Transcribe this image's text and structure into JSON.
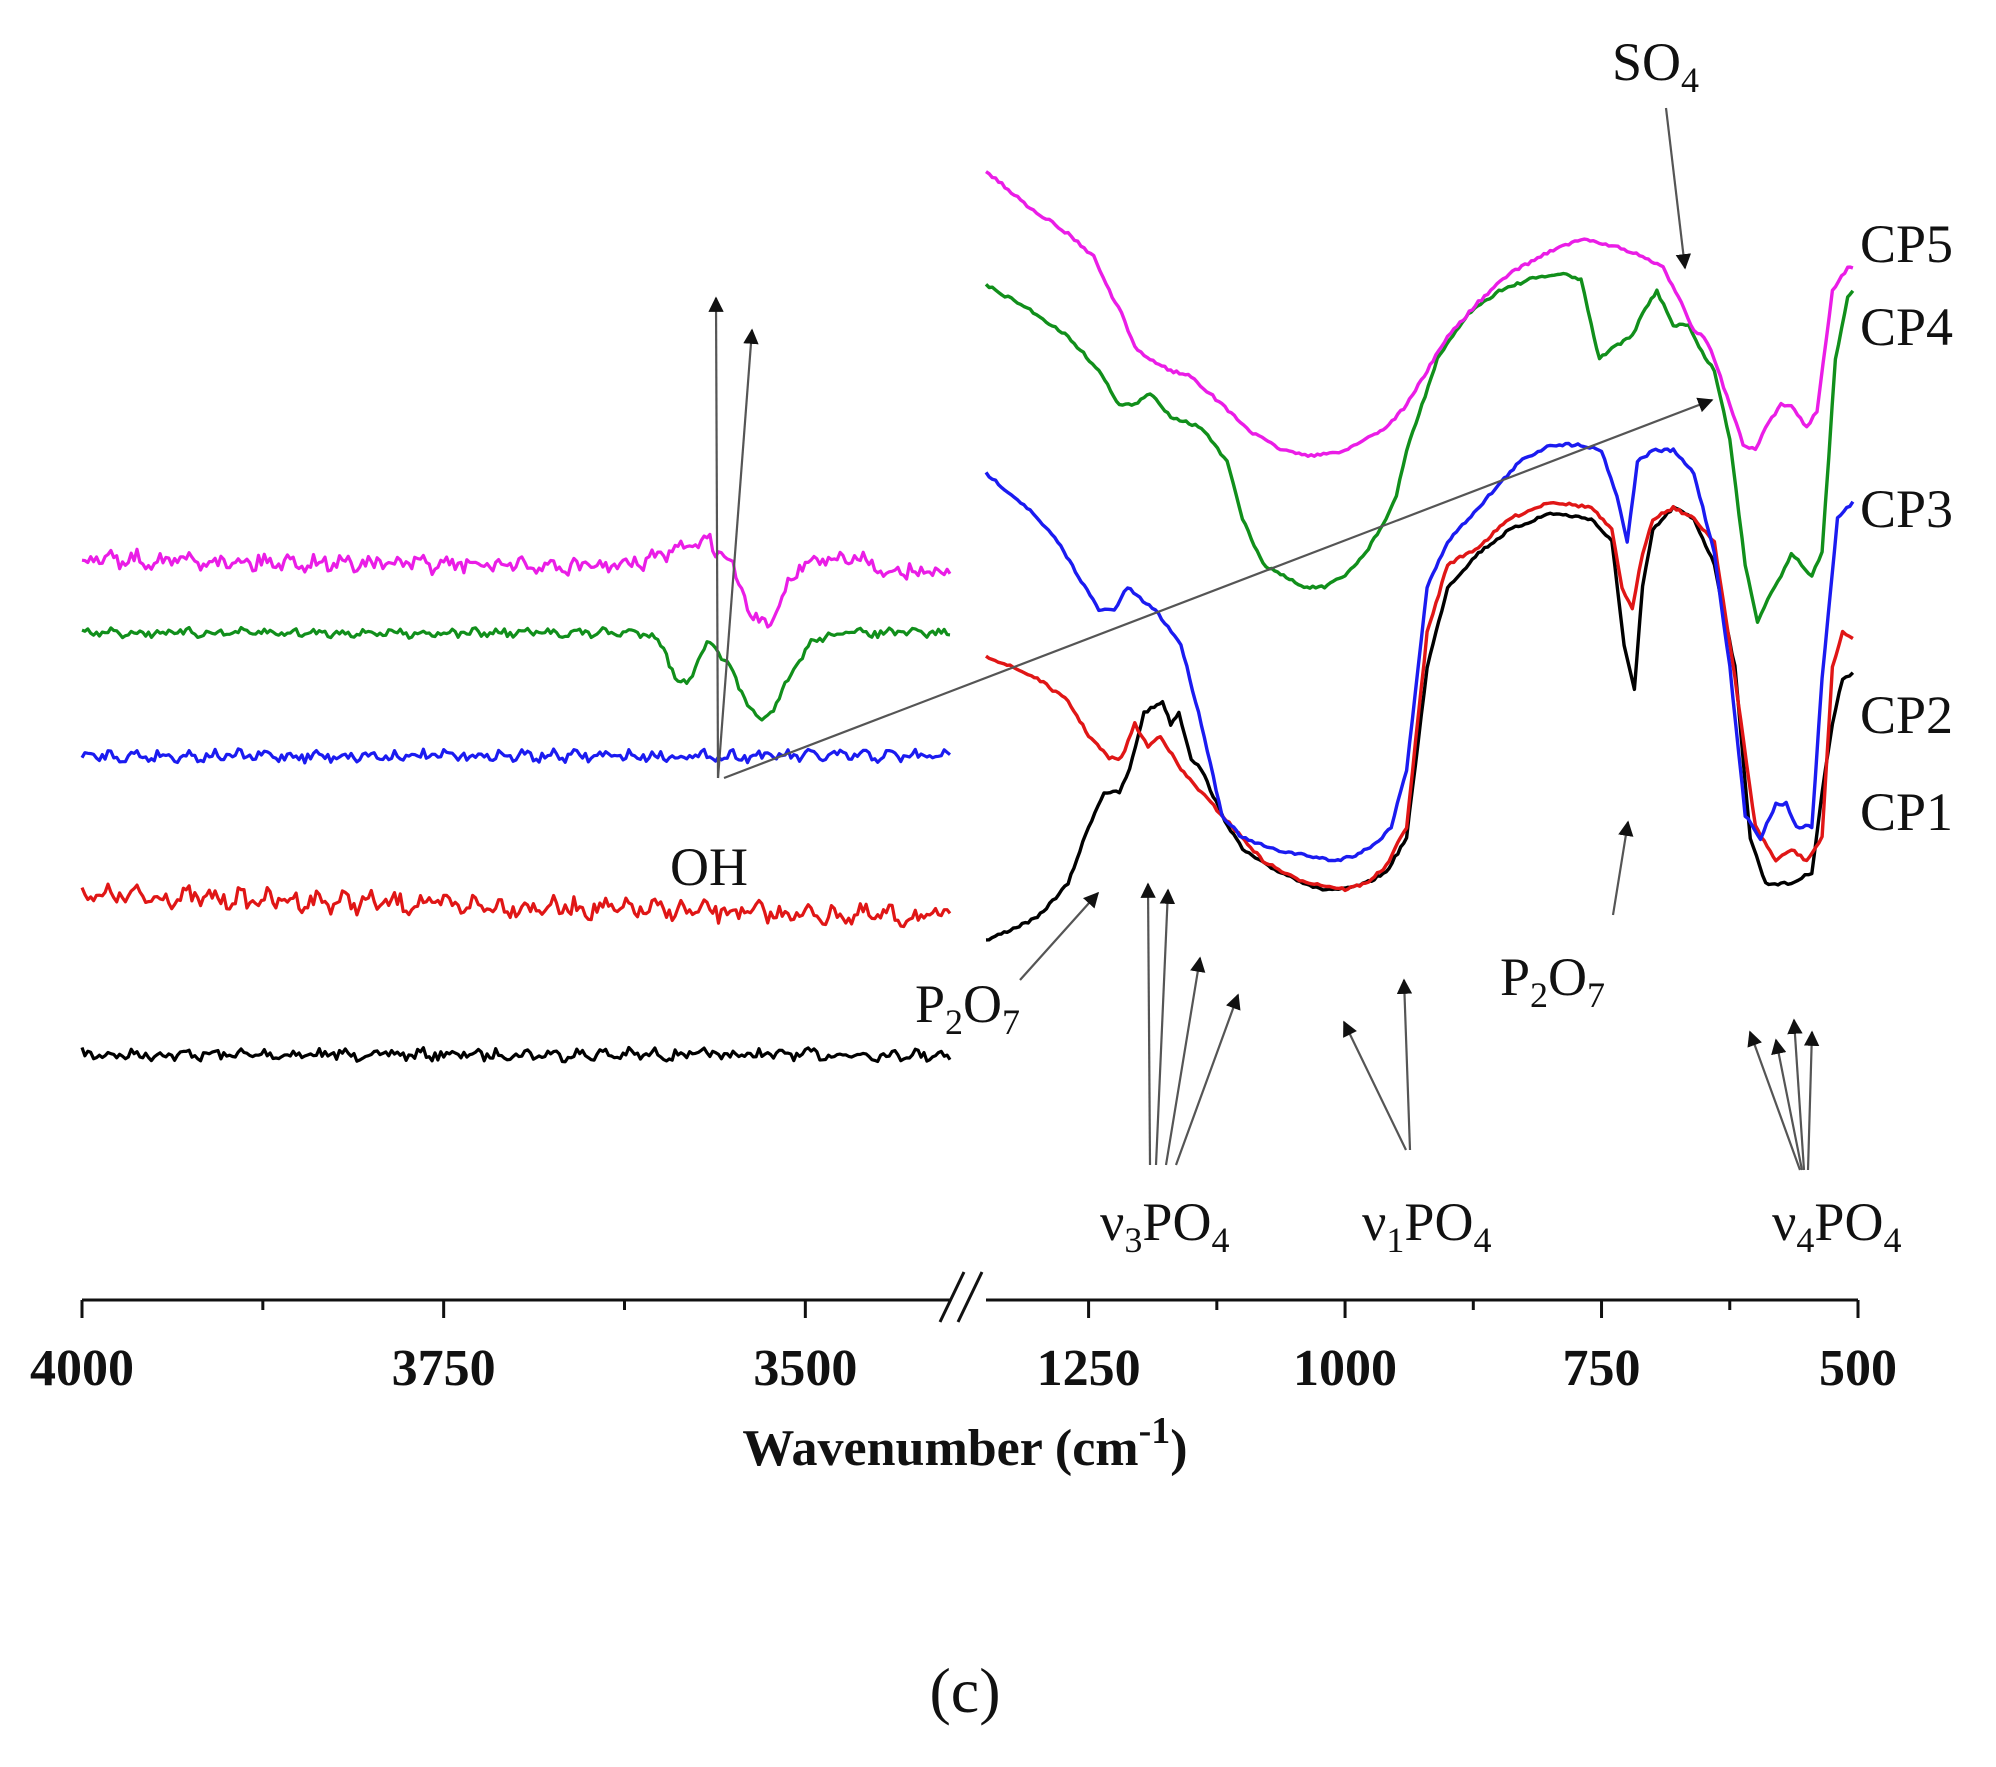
{
  "chart_data": {
    "type": "line",
    "title": "",
    "xlabel": "Wavenumber (cm",
    "xlabel_sup": "-1",
    "xlabel_close": ")",
    "ylabel": "",
    "x_segments": [
      {
        "range": [
          4000,
          3400
        ],
        "ticks": [
          4000,
          3750,
          3500
        ]
      },
      {
        "range": [
          1350,
          500
        ],
        "ticks": [
          1250,
          1000,
          750,
          500
        ]
      }
    ],
    "axis_break": "//",
    "grid": false,
    "legend": "inline-right",
    "series": [
      {
        "name": "CP1",
        "color": "#000000",
        "left": {
          "base": 0.89,
          "noise": 0.004
        },
        "right": [
          [
            1350,
            0.79
          ],
          [
            1300,
            0.77
          ],
          [
            1270,
            0.74
          ],
          [
            1250,
            0.69
          ],
          [
            1235,
            0.66
          ],
          [
            1220,
            0.66
          ],
          [
            1210,
            0.64
          ],
          [
            1196,
            0.59
          ],
          [
            1186,
            0.585
          ],
          [
            1178,
            0.58
          ],
          [
            1170,
            0.6
          ],
          [
            1162,
            0.59
          ],
          [
            1150,
            0.63
          ],
          [
            1140,
            0.64
          ],
          [
            1120,
            0.68
          ],
          [
            1100,
            0.71
          ],
          [
            1075,
            0.725
          ],
          [
            1050,
            0.735
          ],
          [
            1025,
            0.745
          ],
          [
            1000,
            0.745
          ],
          [
            980,
            0.74
          ],
          [
            960,
            0.73
          ],
          [
            940,
            0.7
          ],
          [
            920,
            0.55
          ],
          [
            900,
            0.48
          ],
          [
            870,
            0.45
          ],
          [
            840,
            0.43
          ],
          [
            800,
            0.415
          ],
          [
            760,
            0.42
          ],
          [
            740,
            0.44
          ],
          [
            728,
            0.53
          ],
          [
            718,
            0.57
          ],
          [
            710,
            0.48
          ],
          [
            700,
            0.43
          ],
          [
            680,
            0.41
          ],
          [
            660,
            0.42
          ],
          [
            640,
            0.46
          ],
          [
            620,
            0.55
          ],
          [
            605,
            0.7
          ],
          [
            590,
            0.74
          ],
          [
            575,
            0.74
          ],
          [
            565,
            0.74
          ],
          [
            555,
            0.735
          ],
          [
            545,
            0.73
          ],
          [
            535,
            0.66
          ],
          [
            525,
            0.6
          ],
          [
            515,
            0.56
          ],
          [
            505,
            0.555
          ]
        ]
      },
      {
        "name": "CP2",
        "color": "#e01616",
        "left": {
          "base": 0.75,
          "noise": 0.007,
          "slope": 0.02
        },
        "right": [
          [
            1350,
            0.54
          ],
          [
            1300,
            0.56
          ],
          [
            1270,
            0.58
          ],
          [
            1250,
            0.61
          ],
          [
            1230,
            0.63
          ],
          [
            1218,
            0.63
          ],
          [
            1205,
            0.6
          ],
          [
            1192,
            0.62
          ],
          [
            1180,
            0.61
          ],
          [
            1160,
            0.64
          ],
          [
            1140,
            0.66
          ],
          [
            1110,
            0.69
          ],
          [
            1080,
            0.72
          ],
          [
            1050,
            0.735
          ],
          [
            1030,
            0.74
          ],
          [
            1000,
            0.745
          ],
          [
            980,
            0.74
          ],
          [
            960,
            0.725
          ],
          [
            940,
            0.69
          ],
          [
            920,
            0.52
          ],
          [
            900,
            0.46
          ],
          [
            870,
            0.445
          ],
          [
            840,
            0.42
          ],
          [
            800,
            0.405
          ],
          [
            760,
            0.41
          ],
          [
            740,
            0.43
          ],
          [
            730,
            0.48
          ],
          [
            720,
            0.5
          ],
          [
            710,
            0.45
          ],
          [
            700,
            0.42
          ],
          [
            680,
            0.41
          ],
          [
            660,
            0.42
          ],
          [
            640,
            0.44
          ],
          [
            620,
            0.56
          ],
          [
            600,
            0.69
          ],
          [
            580,
            0.72
          ],
          [
            565,
            0.71
          ],
          [
            550,
            0.72
          ],
          [
            535,
            0.7
          ],
          [
            525,
            0.55
          ],
          [
            515,
            0.52
          ],
          [
            505,
            0.525
          ]
        ]
      },
      {
        "name": "CP3",
        "color": "#1b1bf0",
        "left": {
          "base": 0.628,
          "noise": 0.004
        },
        "right": [
          [
            1350,
            0.38
          ],
          [
            1310,
            0.41
          ],
          [
            1280,
            0.44
          ],
          [
            1260,
            0.47
          ],
          [
            1240,
            0.5
          ],
          [
            1225,
            0.5
          ],
          [
            1212,
            0.48
          ],
          [
            1200,
            0.49
          ],
          [
            1185,
            0.5
          ],
          [
            1160,
            0.53
          ],
          [
            1140,
            0.6
          ],
          [
            1120,
            0.68
          ],
          [
            1100,
            0.7
          ],
          [
            1070,
            0.71
          ],
          [
            1040,
            0.715
          ],
          [
            1010,
            0.72
          ],
          [
            990,
            0.715
          ],
          [
            970,
            0.705
          ],
          [
            955,
            0.69
          ],
          [
            940,
            0.64
          ],
          [
            920,
            0.48
          ],
          [
            900,
            0.44
          ],
          [
            880,
            0.42
          ],
          [
            860,
            0.4
          ],
          [
            830,
            0.37
          ],
          [
            800,
            0.355
          ],
          [
            770,
            0.355
          ],
          [
            750,
            0.36
          ],
          [
            735,
            0.4
          ],
          [
            725,
            0.44
          ],
          [
            715,
            0.37
          ],
          [
            700,
            0.36
          ],
          [
            680,
            0.36
          ],
          [
            660,
            0.38
          ],
          [
            640,
            0.45
          ],
          [
            625,
            0.55
          ],
          [
            610,
            0.68
          ],
          [
            595,
            0.7
          ],
          [
            580,
            0.67
          ],
          [
            570,
            0.67
          ],
          [
            560,
            0.69
          ],
          [
            545,
            0.69
          ],
          [
            535,
            0.56
          ],
          [
            520,
            0.42
          ],
          [
            505,
            0.405
          ]
        ]
      },
      {
        "name": "CP4",
        "color": "#118f1b",
        "left": {
          "base": 0.52,
          "noise": 0.003,
          "dips": [
            [
              3585,
              0.045,
              12
            ],
            [
              3530,
              0.075,
              24
            ]
          ]
        },
        "right": [
          [
            1350,
            0.215
          ],
          [
            1310,
            0.235
          ],
          [
            1270,
            0.26
          ],
          [
            1240,
            0.29
          ],
          [
            1220,
            0.32
          ],
          [
            1205,
            0.32
          ],
          [
            1190,
            0.31
          ],
          [
            1170,
            0.33
          ],
          [
            1140,
            0.34
          ],
          [
            1115,
            0.37
          ],
          [
            1100,
            0.42
          ],
          [
            1080,
            0.46
          ],
          [
            1060,
            0.47
          ],
          [
            1040,
            0.48
          ],
          [
            1020,
            0.48
          ],
          [
            1000,
            0.47
          ],
          [
            980,
            0.45
          ],
          [
            960,
            0.42
          ],
          [
            950,
            0.4
          ],
          [
            940,
            0.36
          ],
          [
            925,
            0.32
          ],
          [
            910,
            0.28
          ],
          [
            880,
            0.24
          ],
          [
            850,
            0.22
          ],
          [
            820,
            0.21
          ],
          [
            790,
            0.205
          ],
          [
            770,
            0.21
          ],
          [
            760,
            0.25
          ],
          [
            752,
            0.28
          ],
          [
            740,
            0.27
          ],
          [
            720,
            0.26
          ],
          [
            710,
            0.24
          ],
          [
            696,
            0.22
          ],
          [
            680,
            0.25
          ],
          [
            665,
            0.25
          ],
          [
            655,
            0.27
          ],
          [
            640,
            0.29
          ],
          [
            625,
            0.35
          ],
          [
            610,
            0.46
          ],
          [
            598,
            0.51
          ],
          [
            588,
            0.49
          ],
          [
            575,
            0.47
          ],
          [
            565,
            0.45
          ],
          [
            555,
            0.46
          ],
          [
            545,
            0.47
          ],
          [
            535,
            0.45
          ],
          [
            522,
            0.28
          ],
          [
            510,
            0.225
          ],
          [
            505,
            0.22
          ]
        ]
      },
      {
        "name": "CP5",
        "color": "#ea1de6",
        "left": {
          "base": 0.455,
          "noise": 0.006,
          "slope": 0.012,
          "dips": [
            [
              3530,
              0.06,
              18
            ]
          ],
          "hump": [
            3580,
            0.016
          ]
        },
        "right": [
          [
            1350,
            0.115
          ],
          [
            1310,
            0.145
          ],
          [
            1270,
            0.17
          ],
          [
            1245,
            0.19
          ],
          [
            1230,
            0.22
          ],
          [
            1218,
            0.24
          ],
          [
            1205,
            0.27
          ],
          [
            1190,
            0.28
          ],
          [
            1170,
            0.29
          ],
          [
            1150,
            0.295
          ],
          [
            1120,
            0.32
          ],
          [
            1090,
            0.345
          ],
          [
            1060,
            0.36
          ],
          [
            1030,
            0.365
          ],
          [
            1000,
            0.36
          ],
          [
            980,
            0.35
          ],
          [
            960,
            0.34
          ],
          [
            940,
            0.32
          ],
          [
            920,
            0.29
          ],
          [
            900,
            0.26
          ],
          [
            870,
            0.23
          ],
          [
            840,
            0.205
          ],
          [
            800,
            0.185
          ],
          [
            770,
            0.175
          ],
          [
            740,
            0.18
          ],
          [
            710,
            0.19
          ],
          [
            690,
            0.2
          ],
          [
            672,
            0.23
          ],
          [
            660,
            0.255
          ],
          [
            650,
            0.26
          ],
          [
            640,
            0.28
          ],
          [
            625,
            0.32
          ],
          [
            612,
            0.355
          ],
          [
            600,
            0.36
          ],
          [
            590,
            0.34
          ],
          [
            575,
            0.32
          ],
          [
            565,
            0.32
          ],
          [
            550,
            0.34
          ],
          [
            540,
            0.325
          ],
          [
            525,
            0.22
          ],
          [
            510,
            0.2
          ],
          [
            505,
            0.2
          ]
        ]
      }
    ],
    "annotations": [
      {
        "name": "OH",
        "label": "OH"
      },
      {
        "name": "SO4",
        "label": "SO",
        "sub": "4"
      },
      {
        "name": "P2O7-left",
        "label": "P",
        "sub1": "2",
        "mid": "O",
        "sub2": "7"
      },
      {
        "name": "P2O7-right",
        "label": "P",
        "sub1": "2",
        "mid": "O",
        "sub2": "7"
      },
      {
        "name": "v3PO4",
        "label": "ν",
        "sub1": "3",
        "mid": "PO",
        "sub2": "4"
      },
      {
        "name": "v1PO4",
        "label": "ν",
        "sub1": "1",
        "mid": "PO",
        "sub2": "4"
      },
      {
        "name": "v4PO4",
        "label": "ν",
        "sub1": "4",
        "mid": "PO",
        "sub2": "4"
      }
    ],
    "panel_label": "(c)"
  }
}
